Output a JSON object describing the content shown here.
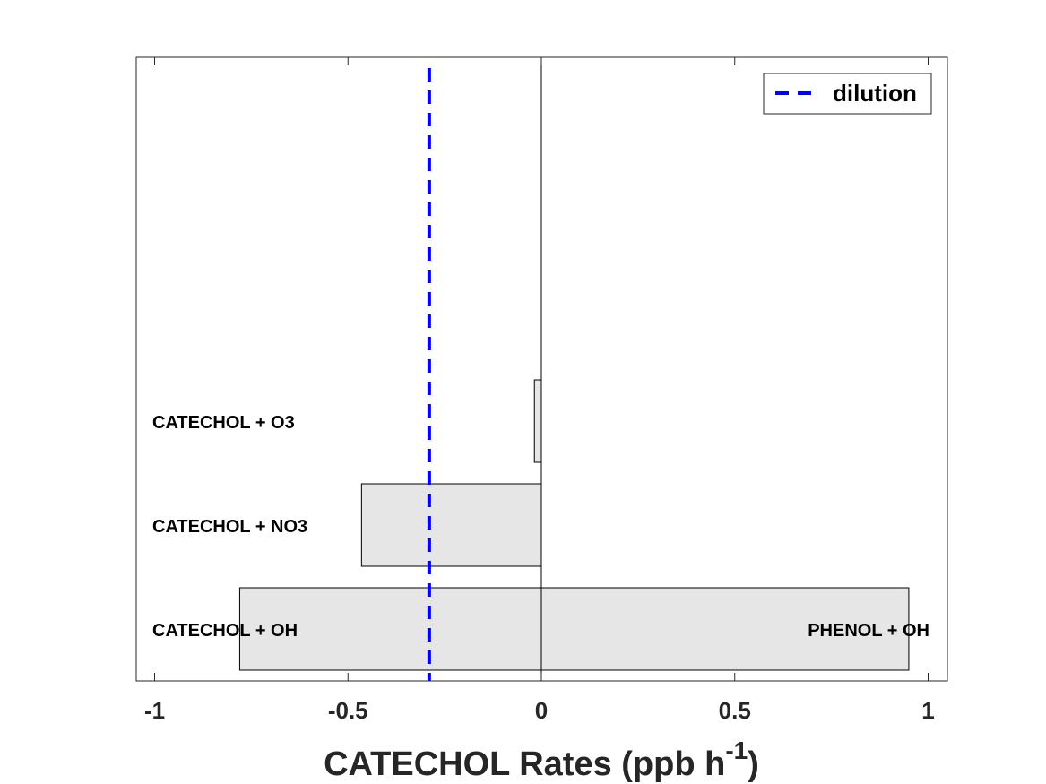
{
  "chart_data": {
    "type": "bar",
    "orientation": "horizontal",
    "stacked": true,
    "xlabel": {
      "main": "CATECHOL Rates (ppb h",
      "superscript": "-1",
      "close": ")"
    },
    "xlim": [
      -1.05,
      1.05
    ],
    "xticks": [
      {
        "value": -1,
        "label": "-1"
      },
      {
        "value": -0.5,
        "label": "-0.5"
      },
      {
        "value": 0,
        "label": "0"
      },
      {
        "value": 0.5,
        "label": "0.5"
      },
      {
        "value": 1,
        "label": "1"
      }
    ],
    "grid": false,
    "bars": [
      {
        "row": 1,
        "value": -0.78,
        "label": "CATECHOL + OH",
        "label_side": "left"
      },
      {
        "row": 1,
        "value": 0.95,
        "label": "PHENOL + OH",
        "label_side": "right"
      },
      {
        "row": 2,
        "value": -0.465,
        "label": "CATECHOL + NO3",
        "label_side": "left"
      },
      {
        "row": 3,
        "value": -0.018,
        "label": "CATECHOL + O3",
        "label_side": "left"
      }
    ],
    "reference_lines": [
      {
        "name": "dilution",
        "value": -0.29,
        "style": "dashed",
        "color": "#0000ff"
      }
    ],
    "legend": {
      "position": "top-right",
      "entries": [
        "dilution"
      ]
    },
    "colors": {
      "bar_fill": "#e6e6e6",
      "bar_edge": "#000000",
      "dilution": "#0000ff"
    }
  }
}
